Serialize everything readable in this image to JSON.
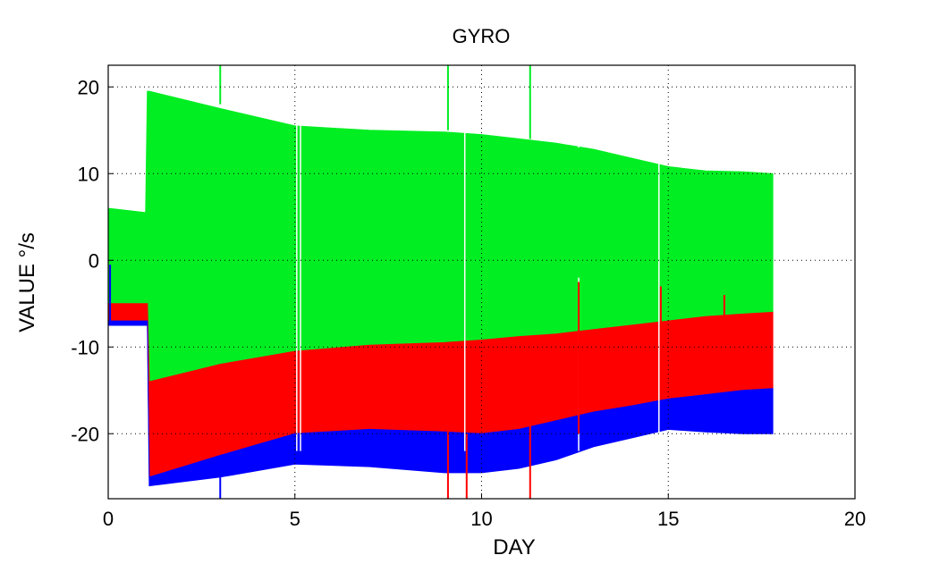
{
  "chart_data": {
    "type": "area",
    "title": "GYRO",
    "xlabel": "DAY",
    "ylabel": "VALUE °/s",
    "xlim": [
      0,
      20
    ],
    "ylim": [
      -27.5,
      22.5
    ],
    "xticks": [
      "0",
      "5",
      "10",
      "15",
      "20"
    ],
    "yticks": [
      "20",
      "10",
      "0",
      "-10",
      "-20"
    ],
    "grid": true,
    "legend": "none",
    "series": [
      {
        "color": "#00ee22",
        "x": [
          0,
          1.0,
          1.05,
          1.1,
          3,
          5,
          7,
          9,
          10,
          11,
          12,
          13,
          14,
          15,
          16,
          17,
          17.8
        ],
        "upper": [
          6,
          5.5,
          19.5,
          19.5,
          17.5,
          15.5,
          15,
          14.8,
          14.5,
          14,
          13.5,
          12.8,
          11.8,
          10.8,
          10.3,
          10.2,
          10
        ],
        "lower": [
          -5,
          -5,
          -5,
          -14,
          -12,
          -10.5,
          -9.8,
          -9.5,
          -9.2,
          -8.8,
          -8.5,
          -8,
          -7.5,
          -7,
          -6.5,
          -6.2,
          -6
        ]
      },
      {
        "color": "#ff0000",
        "x": [
          0,
          1.0,
          1.05,
          1.1,
          3,
          5,
          7,
          9,
          10,
          11,
          12,
          13,
          14,
          15,
          16,
          17,
          17.8
        ],
        "upper": [
          -5,
          -5,
          -5,
          -14,
          -12,
          -10.5,
          -9.8,
          -9.5,
          -9.2,
          -8.8,
          -8.5,
          -8,
          -7.5,
          -7,
          -6.5,
          -6.2,
          -6
        ],
        "lower": [
          -7,
          -7,
          -7,
          -25,
          -22.5,
          -20,
          -19.5,
          -19.8,
          -20,
          -19.5,
          -18.5,
          -17.5,
          -16.8,
          -16,
          -15.5,
          -15,
          -14.8
        ]
      },
      {
        "color": "#0000ff",
        "x": [
          0,
          1.0,
          1.05,
          1.1,
          3,
          5,
          7,
          9,
          10,
          11,
          12,
          13,
          14,
          15,
          16,
          17,
          17.8
        ],
        "upper": [
          -7,
          -7,
          -7,
          -25,
          -22.5,
          -20,
          -19.5,
          -19.8,
          -20,
          -19.5,
          -18.5,
          -17.5,
          -16.8,
          -16,
          -15.5,
          -15,
          -14.8
        ],
        "lower": [
          -7.5,
          -7.5,
          -7.5,
          -26,
          -25,
          -23.5,
          -23.8,
          -24.5,
          -24.5,
          -24,
          -23,
          -21.5,
          -20.5,
          -19.5,
          -19.8,
          -20,
          -20
        ]
      }
    ],
    "spikes": [
      {
        "color": "#00ee22",
        "x": 3.0,
        "y1": 18,
        "y2": 22.5
      },
      {
        "color": "#00ee22",
        "x": 9.1,
        "y1": 15,
        "y2": 22.5
      },
      {
        "color": "#00ee22",
        "x": 11.3,
        "y1": 14,
        "y2": 22.5
      },
      {
        "color": "#00ee22",
        "x": 12.6,
        "y1": -2,
        "y2": 13
      },
      {
        "color": "#ff0000",
        "x": 9.1,
        "y1": -27.5,
        "y2": -19
      },
      {
        "color": "#ff0000",
        "x": 9.6,
        "y1": -27.5,
        "y2": -20
      },
      {
        "color": "#ff0000",
        "x": 11.3,
        "y1": -27.5,
        "y2": -19
      },
      {
        "color": "#ff0000",
        "x": 12.6,
        "y1": -20,
        "y2": -2.5
      },
      {
        "color": "#ff0000",
        "x": 14.8,
        "y1": -15,
        "y2": -3
      },
      {
        "color": "#ff0000",
        "x": 16.5,
        "y1": -14,
        "y2": -4
      },
      {
        "color": "#0000ff",
        "x": 3.0,
        "y1": -27.5,
        "y2": -24
      },
      {
        "color": "#0000ff",
        "x": 0.05,
        "y1": -7,
        "y2": -0.5
      }
    ],
    "gaps": [
      {
        "x": 5.05
      },
      {
        "x": 5.15
      },
      {
        "x": 9.55
      },
      {
        "x": 12.6
      },
      {
        "x": 14.75
      }
    ]
  }
}
